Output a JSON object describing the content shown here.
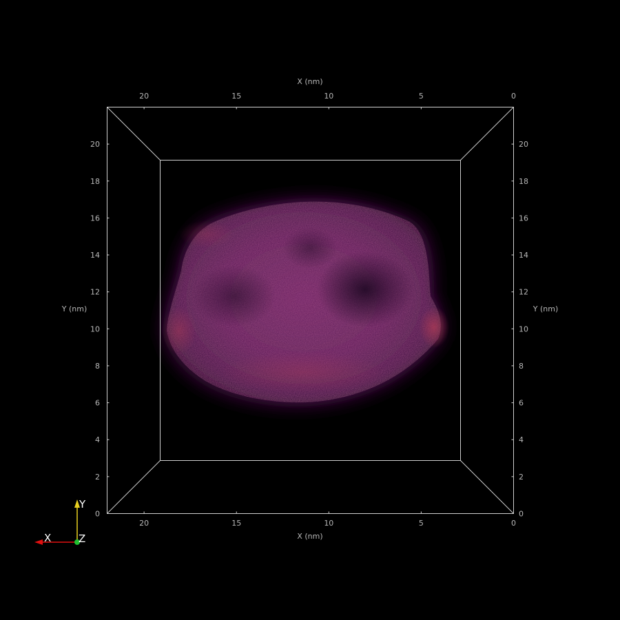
{
  "viewer": {
    "background_color": "#000000",
    "frame_color": "#d0d0d0",
    "label_color": "#b8b8b8",
    "volume_colors": {
      "core": "#7a2a6a",
      "rim": "#a83a5a",
      "edge": "#3a0f33"
    }
  },
  "axes": {
    "x_title_top": "X (nm)",
    "x_title_bottom": "X (nm)",
    "y_title_left": "Y (nm)",
    "y_title_right": "Y (nm)",
    "x_ticks": [
      "20",
      "15",
      "10",
      "5",
      "0"
    ],
    "y_ticks": [
      "20",
      "18",
      "16",
      "14",
      "12",
      "10",
      "8",
      "6",
      "4",
      "2",
      "0"
    ]
  },
  "orientation_triad": {
    "x_label": "X",
    "y_label": "Y",
    "z_label": "Z",
    "x_color": "#e01010",
    "y_color": "#e8d020",
    "z_color": "#20c030"
  }
}
